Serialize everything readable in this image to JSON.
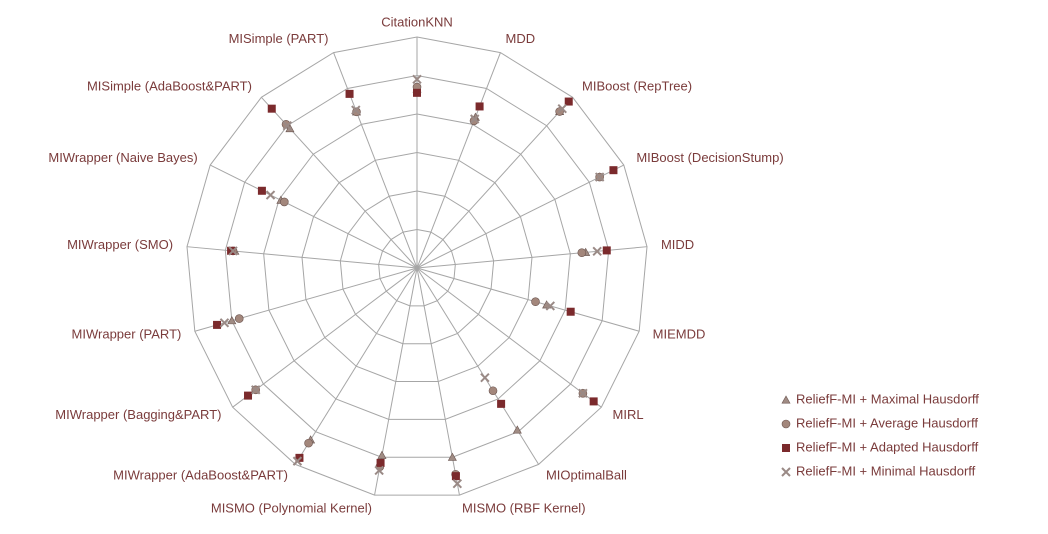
{
  "chart_data": {
    "type": "radar",
    "categories": [
      "CitationKNN",
      "MDD",
      "MIBoost (RepTree)",
      "MIBoost (DecisionStump)",
      "MIDD",
      "MIEMDD",
      "MIRL",
      "MIOptimalBall",
      "MISMO (RBF Kernel)",
      "MISMO (Polynomial Kernel)",
      "MIWrapper (AdaBoost&PART)",
      "MIWrapper (Bagging&PART)",
      "MIWrapper (PART)",
      "MIWrapper (SMO)",
      "MIWrapper (Naive Bayes)",
      "MISimple (AdaBoost&PART)",
      "MISimple (PART)"
    ],
    "rlim": [
      0,
      120
    ],
    "rticks": [
      20,
      40,
      60,
      80,
      100,
      120
    ],
    "grid": true,
    "series": [
      {
        "name": "ReliefF-MI + Maximal Hausdorff",
        "marker": "triangle",
        "color": "#a08c84",
        "values": [
          93,
          84,
          110,
          106,
          88,
          70,
          108,
          99,
          100,
          99,
          105,
          105,
          100,
          95,
          79,
          98,
          87
        ]
      },
      {
        "name": "ReliefF-MI + Average Hausdorff",
        "marker": "circle",
        "color": "#a3877c",
        "values": [
          94,
          82,
          110,
          106,
          86,
          64,
          108,
          75,
          109,
          105,
          107,
          105,
          96,
          96,
          77,
          101,
          87
        ]
      },
      {
        "name": "ReliefF-MI + Adapted Hausdorff",
        "marker": "square",
        "color": "#7b2a2c",
        "values": [
          91,
          90,
          117,
          114,
          99,
          83,
          115,
          83,
          110,
          103,
          116,
          110,
          108,
          97,
          90,
          112,
          97
        ]
      },
      {
        "name": "ReliefF-MI + Minimal Hausdorff",
        "marker": "cross",
        "color": "#9a8a86",
        "values": [
          98,
          83,
          112,
          106,
          94,
          72,
          108,
          67,
          114,
          107,
          118,
          105,
          104,
          96,
          85,
          100,
          88
        ]
      }
    ]
  }
}
